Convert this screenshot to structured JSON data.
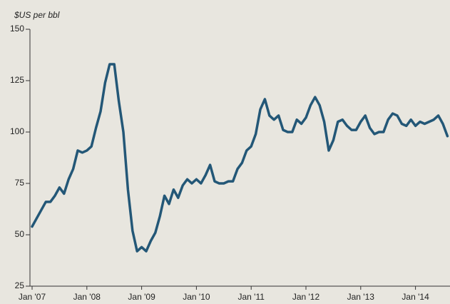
{
  "chart_data": {
    "type": "line",
    "y_label": "$US per bbl",
    "categories": [
      "Jan '07",
      null,
      null,
      null,
      null,
      null,
      null,
      null,
      null,
      null,
      null,
      null,
      "Jan '08",
      null,
      null,
      null,
      null,
      null,
      null,
      null,
      null,
      null,
      null,
      null,
      "Jan '09",
      null,
      null,
      null,
      null,
      null,
      null,
      null,
      null,
      null,
      null,
      null,
      "Jan '10",
      null,
      null,
      null,
      null,
      null,
      null,
      null,
      null,
      null,
      null,
      null,
      "Jan '11",
      null,
      null,
      null,
      null,
      null,
      null,
      null,
      null,
      null,
      null,
      null,
      "Jan '12",
      null,
      null,
      null,
      null,
      null,
      null,
      null,
      null,
      null,
      null,
      null,
      "Jan '13",
      null,
      null,
      null,
      null,
      null,
      null,
      null,
      null,
      null,
      null,
      null,
      "Jan '14",
      null,
      null,
      null,
      null,
      null,
      null,
      null
    ],
    "values": [
      54,
      58,
      62,
      66,
      66,
      69,
      73,
      70,
      77,
      82,
      91,
      90,
      91,
      93,
      102,
      110,
      124,
      133,
      133,
      115,
      100,
      72,
      52,
      42,
      44,
      42,
      47,
      51,
      59,
      69,
      65,
      72,
      68,
      74,
      77,
      75,
      77,
      75,
      79,
      84,
      76,
      75,
      75,
      76,
      76,
      82,
      85,
      91,
      93,
      99,
      111,
      116,
      108,
      106,
      108,
      101,
      100,
      100,
      106,
      104,
      107,
      113,
      117,
      113,
      105,
      91,
      96,
      105,
      106,
      103,
      101,
      101,
      105,
      108,
      102,
      99,
      100,
      100,
      106,
      109,
      108,
      104,
      103,
      106,
      103,
      105,
      104,
      105,
      106,
      108,
      104,
      98
    ],
    "color": "#235777",
    "ylim": [
      25,
      150
    ],
    "yticks": [
      25,
      50,
      75,
      100,
      125,
      150
    ]
  }
}
